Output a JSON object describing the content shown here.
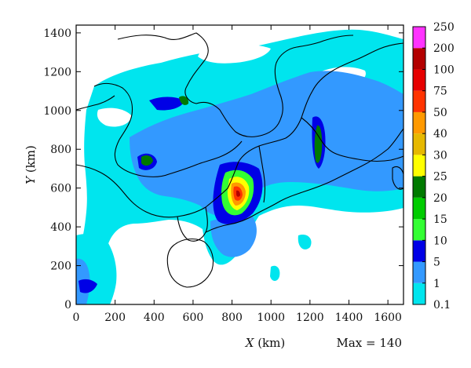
{
  "x_axis": {
    "var": "X",
    "unit": " (km)",
    "min": 0,
    "max": 1680,
    "ticks": [
      "0",
      "200",
      "400",
      "600",
      "800",
      "1000",
      "1200",
      "1400",
      "1600"
    ],
    "tick_values": [
      0,
      200,
      400,
      600,
      800,
      1000,
      1200,
      1400,
      1600
    ]
  },
  "y_axis": {
    "var": "Y",
    "unit": " (km)",
    "min": 0,
    "max": 1440,
    "ticks": [
      "0",
      "200",
      "400",
      "600",
      "800",
      "1000",
      "1200",
      "1400"
    ],
    "tick_values": [
      0,
      200,
      400,
      600,
      800,
      1000,
      1200,
      1400
    ]
  },
  "max_text": "Max = 140",
  "colorbar": {
    "levels": [
      "0.1",
      "1",
      "5",
      "10",
      "15",
      "20",
      "25",
      "30",
      "40",
      "50",
      "75",
      "100",
      "200",
      "250"
    ],
    "colors": [
      "#00e5ee",
      "#3399ff",
      "#0000e6",
      "#33ff33",
      "#00cc00",
      "#007a00",
      "#ffff00",
      "#e6b800",
      "#ff9900",
      "#ff3300",
      "#e60000",
      "#b30000",
      "#ff33ff"
    ]
  },
  "map": {
    "land_color": "#ffffff",
    "border_color": "#000000"
  }
}
